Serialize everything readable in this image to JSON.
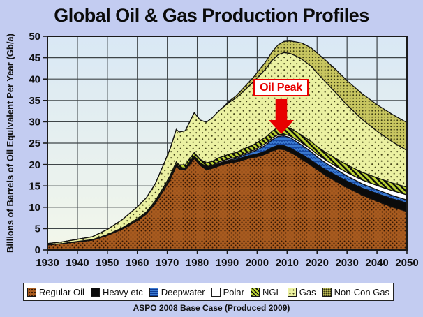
{
  "title": "Global Oil & Gas Production Profiles",
  "caption": "ASPO 2008 Base Case (Produced 2009)",
  "colors": {
    "page_bg": "#C3CCF1",
    "plot_bg_top": "#D9E8F5",
    "plot_bg_bottom": "#F3F7EA",
    "grid": "#3E4447",
    "axis": "#1a1a1a",
    "annotation_red": "#E80000",
    "legend_bg": "#FFFFFF"
  },
  "chart_data": {
    "type": "area",
    "stacked": true,
    "title": "Global Oil & Gas Production Profiles",
    "xlabel": "",
    "ylabel": "Billions of Barrels of Oil Equivalent Per Year (Gb/a)",
    "xlim": [
      1930,
      2050
    ],
    "ylim": [
      0,
      50
    ],
    "x_ticks": [
      1930,
      1940,
      1950,
      1960,
      1970,
      1980,
      1990,
      2000,
      2010,
      2020,
      2030,
      2040,
      2050
    ],
    "y_ticks": [
      0,
      5,
      10,
      15,
      20,
      25,
      30,
      35,
      40,
      45,
      50
    ],
    "grid": true,
    "legend_position": "bottom",
    "annotation": {
      "text": "Oil Peak",
      "year": 2008,
      "value": 29.5
    },
    "years": [
      1930,
      1935,
      1940,
      1945,
      1950,
      1955,
      1960,
      1963,
      1966,
      1969,
      1971,
      1973,
      1974,
      1976,
      1977,
      1979,
      1981,
      1983,
      1985,
      1987,
      1989,
      1991,
      1993,
      1995,
      1997,
      1999,
      2001,
      2003,
      2005,
      2007,
      2009,
      2011,
      2013,
      2015,
      2018,
      2020,
      2023,
      2026,
      2030,
      2035,
      2040,
      2045,
      2050
    ],
    "series": [
      {
        "id": "regular",
        "name": "Regular Oil",
        "color": "#A85B1F",
        "accent": "#331603",
        "pattern": "dots-grid",
        "values": [
          1.2,
          1.5,
          1.9,
          2.3,
          3.4,
          4.9,
          6.9,
          8.4,
          10.9,
          14.2,
          16.6,
          19.6,
          18.9,
          18.7,
          19.6,
          21.4,
          19.8,
          18.8,
          19.1,
          19.6,
          20.1,
          20.4,
          20.6,
          21.0,
          21.4,
          21.7,
          22.0,
          22.5,
          23.2,
          23.6,
          23.5,
          22.9,
          22.1,
          21.2,
          19.8,
          18.8,
          17.4,
          16.2,
          14.6,
          12.9,
          11.4,
          10.1,
          9.0
        ]
      },
      {
        "id": "heavy",
        "name": "Heavy etc",
        "color": "#0B0B0B",
        "accent": "#0B0B0B",
        "pattern": "solid",
        "values": [
          0,
          0,
          0,
          0,
          0.1,
          0.1,
          0.1,
          0.2,
          0.2,
          0.2,
          0.3,
          0.3,
          0.3,
          0.3,
          0.4,
          0.4,
          0.4,
          0.4,
          0.4,
          0.5,
          0.5,
          0.5,
          0.5,
          0.6,
          0.6,
          0.6,
          0.7,
          0.7,
          0.8,
          0.9,
          0.9,
          1.0,
          1.0,
          1.1,
          1.2,
          1.2,
          1.3,
          1.4,
          1.5,
          1.6,
          1.8,
          1.9,
          2.0
        ]
      },
      {
        "id": "deepwater",
        "name": "Deepwater",
        "color": "#3B7AD0",
        "accent": "#0E3C96",
        "pattern": "waves",
        "values": [
          0,
          0,
          0,
          0,
          0,
          0,
          0,
          0,
          0,
          0,
          0,
          0,
          0,
          0,
          0,
          0,
          0,
          0.1,
          0.1,
          0.1,
          0.1,
          0.2,
          0.3,
          0.4,
          0.6,
          0.8,
          1.1,
          1.4,
          1.8,
          2.1,
          2.3,
          2.4,
          2.3,
          2.2,
          2.0,
          1.8,
          1.6,
          1.4,
          1.2,
          1.0,
          0.9,
          0.8,
          0.7
        ]
      },
      {
        "id": "polar",
        "name": "Polar",
        "color": "#FFFFFF",
        "accent": "#FFFFFF",
        "pattern": "solid",
        "values": [
          0,
          0,
          0,
          0,
          0,
          0,
          0,
          0,
          0,
          0.1,
          0.1,
          0.1,
          0.1,
          0.2,
          0.2,
          0.2,
          0.2,
          0.2,
          0.2,
          0.3,
          0.3,
          0.3,
          0.3,
          0.3,
          0.3,
          0.3,
          0.4,
          0.4,
          0.4,
          0.4,
          0.4,
          0.4,
          0.5,
          0.5,
          0.6,
          0.6,
          0.7,
          0.7,
          0.8,
          0.9,
          1.0,
          1.1,
          1.2
        ]
      },
      {
        "id": "ngl",
        "name": "NGL",
        "color": "#BCD334",
        "accent": "#0A0A0A",
        "pattern": "hatch",
        "values": [
          0,
          0,
          0.1,
          0.1,
          0.1,
          0.2,
          0.3,
          0.3,
          0.4,
          0.5,
          0.5,
          0.6,
          0.6,
          0.7,
          0.7,
          0.8,
          0.8,
          0.9,
          0.9,
          1.0,
          1.0,
          1.1,
          1.1,
          1.2,
          1.2,
          1.3,
          1.4,
          1.5,
          1.6,
          1.7,
          1.8,
          1.8,
          1.8,
          1.8,
          1.8,
          1.8,
          1.8,
          1.8,
          1.8,
          1.8,
          1.8,
          1.8,
          1.8
        ]
      },
      {
        "id": "gas",
        "name": "Gas",
        "color": "#EBF1A2",
        "accent": "#45451A",
        "pattern": "dots-sparse",
        "values": [
          0.3,
          0.4,
          0.5,
          0.7,
          1.2,
          1.9,
          2.8,
          3.3,
          4.0,
          5.4,
          6.3,
          7.6,
          7.7,
          8.0,
          8.4,
          9.3,
          9.2,
          9.5,
          10.2,
          10.9,
          11.6,
          12.2,
          12.8,
          13.4,
          14.1,
          14.8,
          15.4,
          16.0,
          16.6,
          17.0,
          17.3,
          17.5,
          17.7,
          17.8,
          17.6,
          17.2,
          16.4,
          15.5,
          14.0,
          12.4,
          10.9,
          9.7,
          8.6
        ]
      },
      {
        "id": "noncon",
        "name": "Non-Con Gas",
        "color": "#C8C660",
        "accent": "#3C3C12",
        "pattern": "dots-dense",
        "values": [
          0,
          0,
          0,
          0,
          0,
          0,
          0,
          0,
          0,
          0,
          0,
          0,
          0,
          0,
          0,
          0,
          0,
          0,
          0,
          0,
          0.1,
          0.3,
          0.5,
          0.7,
          0.9,
          1.1,
          1.4,
          1.7,
          2.0,
          2.3,
          2.6,
          2.9,
          3.3,
          3.8,
          4.3,
          4.7,
          5.1,
          5.4,
          5.7,
          6.0,
          6.2,
          6.4,
          6.5
        ]
      }
    ]
  }
}
